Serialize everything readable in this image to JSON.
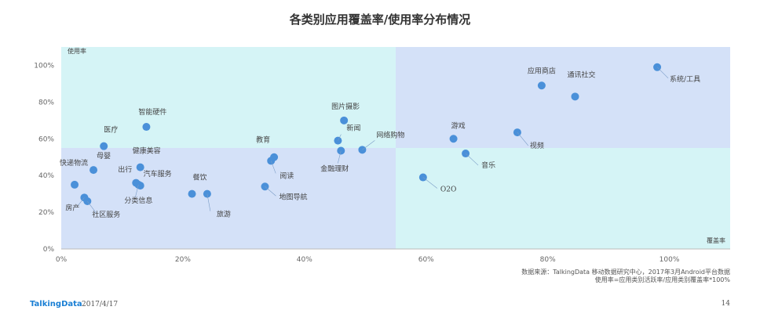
{
  "header": {
    "title": "各类别应用覆盖率/使用率分布情况"
  },
  "chart_data": {
    "type": "scatter",
    "title": "各类别应用覆盖率/使用率分布情况",
    "xlabel": "覆盖率",
    "ylabel": "使用率",
    "xlim": [
      0,
      1.1
    ],
    "ylim": [
      0,
      1.1
    ],
    "x_ticks": [
      "0%",
      "20%",
      "40%",
      "60%",
      "80%",
      "100%"
    ],
    "y_ticks": [
      "0%",
      "20%",
      "40%",
      "60%",
      "80%",
      "100%"
    ],
    "quadrant_split": {
      "x": 0.55,
      "y": 0.55
    },
    "point_color": "#4a90d9",
    "quadrant_colors": {
      "light": "#d5f4f6",
      "dark": "#d4e1f8"
    },
    "points": [
      {
        "label": "系统/工具",
        "x": 0.98,
        "y": 0.99
      },
      {
        "label": "应用商店",
        "x": 0.79,
        "y": 0.89
      },
      {
        "label": "通讯社交",
        "x": 0.845,
        "y": 0.83
      },
      {
        "label": "视频",
        "x": 0.75,
        "y": 0.635
      },
      {
        "label": "游戏",
        "x": 0.645,
        "y": 0.6
      },
      {
        "label": "音乐",
        "x": 0.665,
        "y": 0.52
      },
      {
        "label": "O2O",
        "x": 0.595,
        "y": 0.39
      },
      {
        "label": "图片摄影",
        "x": 0.465,
        "y": 0.7
      },
      {
        "label": "新闻",
        "x": 0.455,
        "y": 0.59
      },
      {
        "label": "网络购物",
        "x": 0.495,
        "y": 0.54
      },
      {
        "label": "金融理财",
        "x": 0.46,
        "y": 0.535
      },
      {
        "label": "教育",
        "x": 0.35,
        "y": 0.5
      },
      {
        "label": "阅读",
        "x": 0.345,
        "y": 0.48
      },
      {
        "label": "地图导航",
        "x": 0.335,
        "y": 0.34
      },
      {
        "label": "智能硬件",
        "x": 0.14,
        "y": 0.665
      },
      {
        "label": "医疗",
        "x": 0.07,
        "y": 0.56
      },
      {
        "label": "母婴",
        "x": 0.053,
        "y": 0.43
      },
      {
        "label": "快递物流",
        "x": 0.022,
        "y": 0.35
      },
      {
        "label": "健康美容",
        "x": 0.13,
        "y": 0.445
      },
      {
        "label": "出行",
        "x": 0.123,
        "y": 0.36
      },
      {
        "label": "汽车服务",
        "x": 0.13,
        "y": 0.345
      },
      {
        "label": "分类信息",
        "x": 0.127,
        "y": 0.35
      },
      {
        "label": "餐饮",
        "x": 0.215,
        "y": 0.3
      },
      {
        "label": "旅游",
        "x": 0.24,
        "y": 0.3
      },
      {
        "label": "房产",
        "x": 0.038,
        "y": 0.28
      },
      {
        "label": "社区服务",
        "x": 0.043,
        "y": 0.26
      }
    ]
  },
  "footer": {
    "source_line1": "数据来源：TalkingData 移动数据研究中心，2017年3月Android平台数据",
    "source_line2": "使用率=应用类别活跃率/应用类别覆盖率*100%",
    "brand": "TalkingData",
    "date": "2017/4/17",
    "page": "14"
  }
}
